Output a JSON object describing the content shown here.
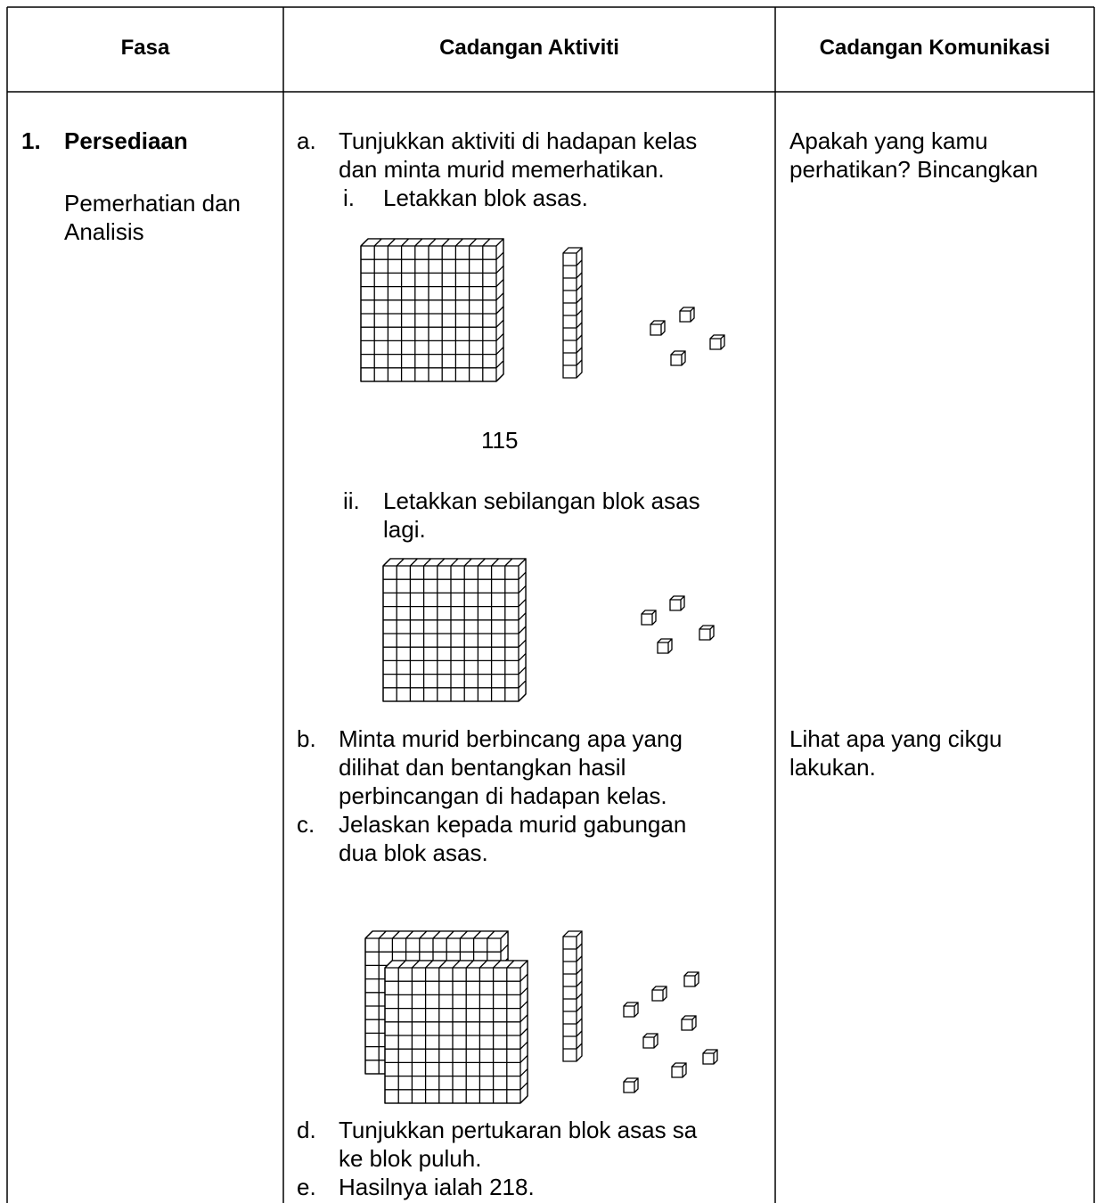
{
  "table": {
    "headers": [
      "Fasa",
      "Cadangan Aktiviti",
      "Cadangan Komunikasi"
    ],
    "phase": {
      "number": "1.",
      "title": "Persediaan",
      "subtitle": [
        "Pemerhatian dan",
        "Analisis"
      ]
    },
    "activities": {
      "a": {
        "marker": "a.",
        "lines": [
          "Tunjukkan aktiviti di hadapan kelas",
          "dan minta murid memerhatikan."
        ],
        "i": {
          "marker": "i.",
          "lines": [
            "Letakkan blok asas."
          ]
        },
        "caption": "115",
        "ii": {
          "marker": "ii.",
          "lines": [
            "Letakkan sebilangan blok asas",
            "lagi."
          ]
        }
      },
      "b": {
        "marker": "b.",
        "lines": [
          "Minta murid berbincang apa yang",
          "dilihat dan bentangkan hasil",
          "perbincangan di hadapan kelas."
        ]
      },
      "c": {
        "marker": "c.",
        "lines": [
          "Jelaskan kepada murid gabungan",
          "dua blok asas."
        ]
      },
      "d": {
        "marker": "d.",
        "lines": [
          "Tunjukkan pertukaran blok asas sa",
          "ke blok puluh."
        ]
      },
      "e": {
        "marker": "e.",
        "lines": [
          "Hasilnya ialah 218."
        ]
      }
    },
    "communication": [
      [
        "Apakah yang kamu",
        "perhatikan? Bincangkan"
      ],
      [
        "Lihat apa yang cikgu",
        "lakukan."
      ]
    ]
  }
}
